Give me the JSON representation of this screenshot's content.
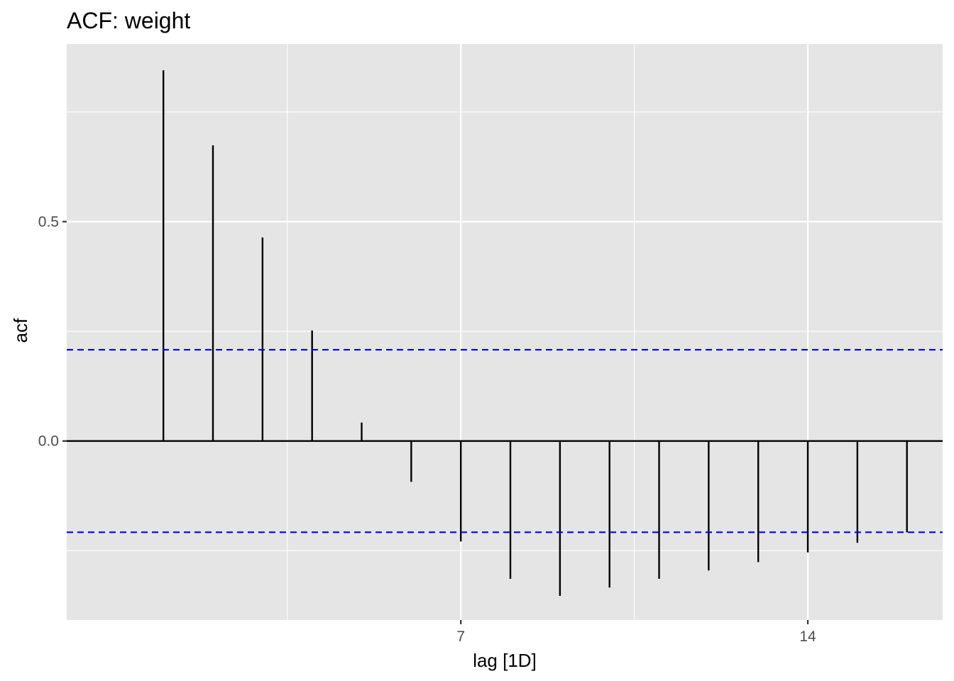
{
  "chart_data": {
    "type": "bar",
    "title": "ACF: weight",
    "xlabel": "lag [1D]",
    "ylabel": "acf",
    "x": [
      1,
      2,
      3,
      4,
      5,
      6,
      7,
      8,
      9,
      10,
      11,
      12,
      13,
      14,
      15,
      16
    ],
    "values": [
      0.845,
      0.674,
      0.464,
      0.252,
      0.042,
      -0.093,
      -0.229,
      -0.314,
      -0.353,
      -0.334,
      -0.314,
      -0.295,
      -0.276,
      -0.254,
      -0.232,
      -0.208
    ],
    "confidence_bounds": [
      0.208,
      -0.208
    ],
    "confidence_line_color": "#0000ff",
    "bar_color": "#000000",
    "xlim": [
      -0.95,
      16.72
    ],
    "ylim": [
      -0.408,
      0.905
    ],
    "x_ticks": [
      7,
      14
    ],
    "x_tick_labels": [
      "7",
      "14"
    ],
    "y_ticks": [
      0.5,
      0.0
    ],
    "y_tick_labels": [
      "0.5",
      "0.0"
    ],
    "grid": true,
    "panel_background": "#e5e5e5",
    "grid_color": "#ffffff"
  }
}
